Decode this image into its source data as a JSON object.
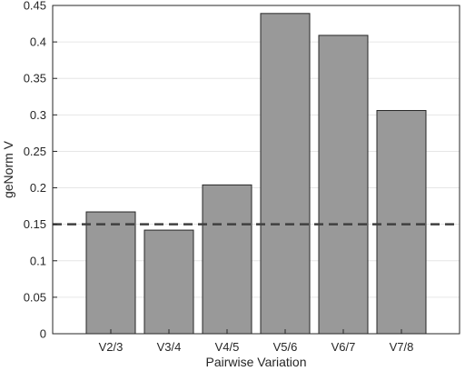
{
  "chart_data": {
    "type": "bar",
    "categories": [
      "V2/3",
      "V3/4",
      "V4/5",
      "V5/6",
      "V6/7",
      "V7/8"
    ],
    "values": [
      0.167,
      0.142,
      0.204,
      0.439,
      0.409,
      0.306
    ],
    "xlabel": "Pairwise Variation",
    "ylabel": "geNorm V",
    "ylim": [
      0,
      0.45
    ],
    "yticks": [
      0,
      0.05,
      0.1,
      0.15,
      0.2,
      0.25,
      0.3,
      0.35,
      0.4,
      0.45
    ],
    "ytick_labels": [
      "0",
      "0.05",
      "0.1",
      "0.15",
      "0.2",
      "0.25",
      "0.3",
      "0.35",
      "0.4",
      "0.45"
    ],
    "threshold": 0.15,
    "grid": true,
    "colors": {
      "bar": "#999999",
      "bar_edge": "#262626",
      "threshold": "#404040",
      "grid": "#e6e6e6"
    }
  }
}
